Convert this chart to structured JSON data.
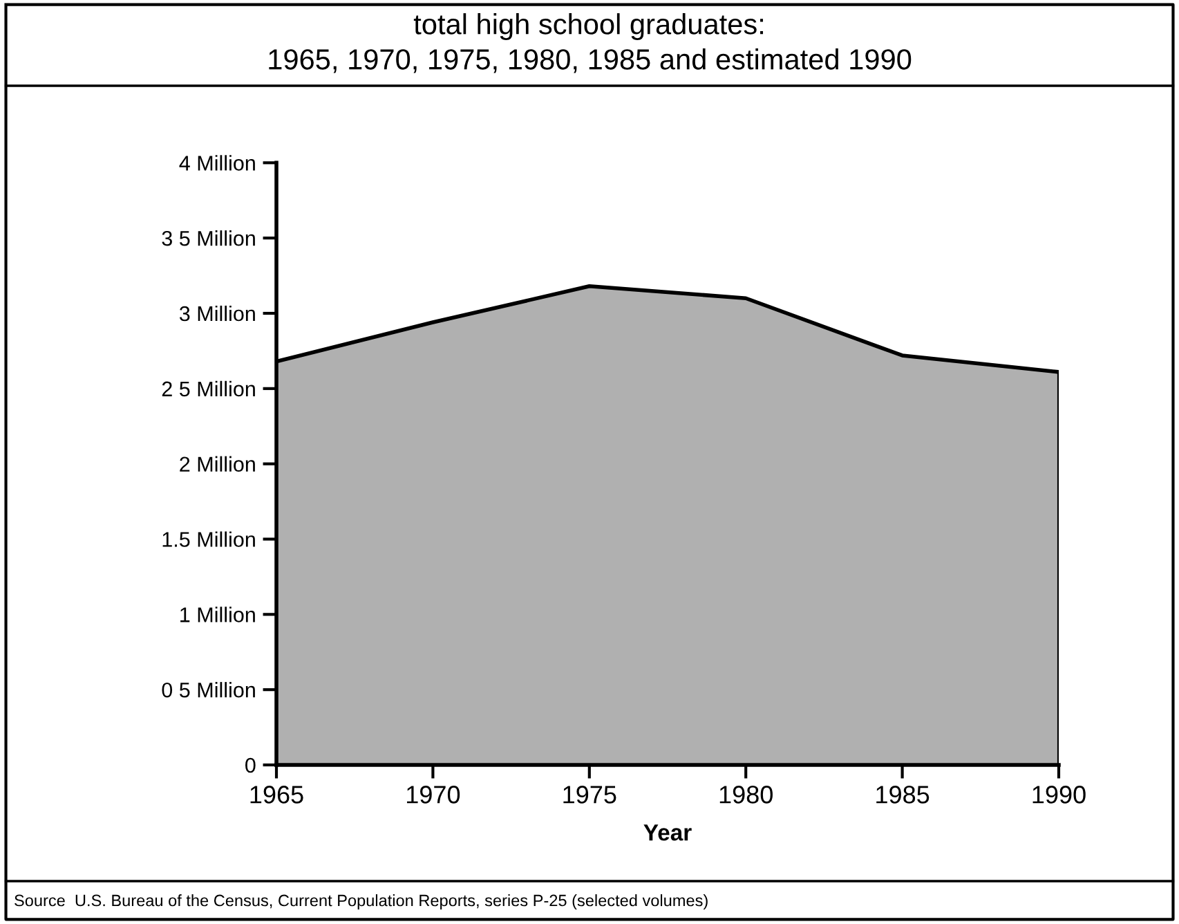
{
  "chart_data": {
    "type": "area",
    "title": "total high school graduates:\n1965, 1970, 1975, 1980, 1985 and estimated 1990",
    "xlabel": "Year",
    "x": [
      1965,
      1970,
      1975,
      1980,
      1985,
      1990
    ],
    "series": [
      {
        "color": "#b0b0b0",
        "values": [
          2.68,
          2.94,
          3.18,
          3.1,
          2.72,
          2.61
        ]
      }
    ],
    "xlim": [
      1965,
      1990
    ],
    "xticks": [
      1965,
      1970,
      1975,
      1980,
      1985,
      1990
    ],
    "ylim": [
      0,
      4
    ],
    "yticks": [
      0,
      {
        "value": 0.5,
        "label": "0 5 Million"
      },
      {
        "value": 1,
        "label": "1 Million"
      },
      {
        "value": 1.5,
        "label": "1.5 Million"
      },
      {
        "value": 2,
        "label": "2 Million"
      },
      {
        "value": 2.5,
        "label": "2 5 Million"
      },
      {
        "value": 3,
        "label": "3 Million"
      },
      {
        "value": 3.5,
        "label": "3 5 Million"
      },
      {
        "value": 4,
        "label": "4 Million"
      }
    ],
    "grid": false,
    "legend": false,
    "annotations": [
      "Source  U.S. Bureau of the Census, Current Population Reports, series P-25 (selected volumes)"
    ]
  }
}
